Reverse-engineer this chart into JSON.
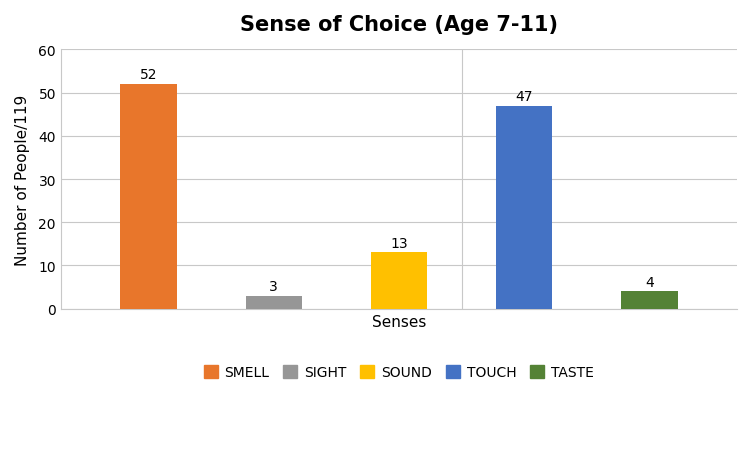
{
  "title": "Sense of Choice (Age 7-11)",
  "xlabel": "Senses",
  "ylabel": "Number of People/119",
  "categories": [
    "SMELL",
    "SIGHT",
    "SOUND",
    "TOUCH",
    "TASTE"
  ],
  "values": [
    52,
    3,
    13,
    47,
    4
  ],
  "bar_colors": [
    "#E8762B",
    "#969696",
    "#FFC000",
    "#4472C4",
    "#548235"
  ],
  "ylim": [
    0,
    60
  ],
  "yticks": [
    0,
    10,
    20,
    30,
    40,
    50,
    60
  ],
  "title_fontsize": 15,
  "label_fontsize": 11,
  "tick_fontsize": 10,
  "legend_fontsize": 10,
  "background_color": "#ffffff",
  "bar_width": 0.45,
  "annotation_fontsize": 10,
  "grid_color": "#C8C8C8",
  "spine_color": "#C8C8C8"
}
